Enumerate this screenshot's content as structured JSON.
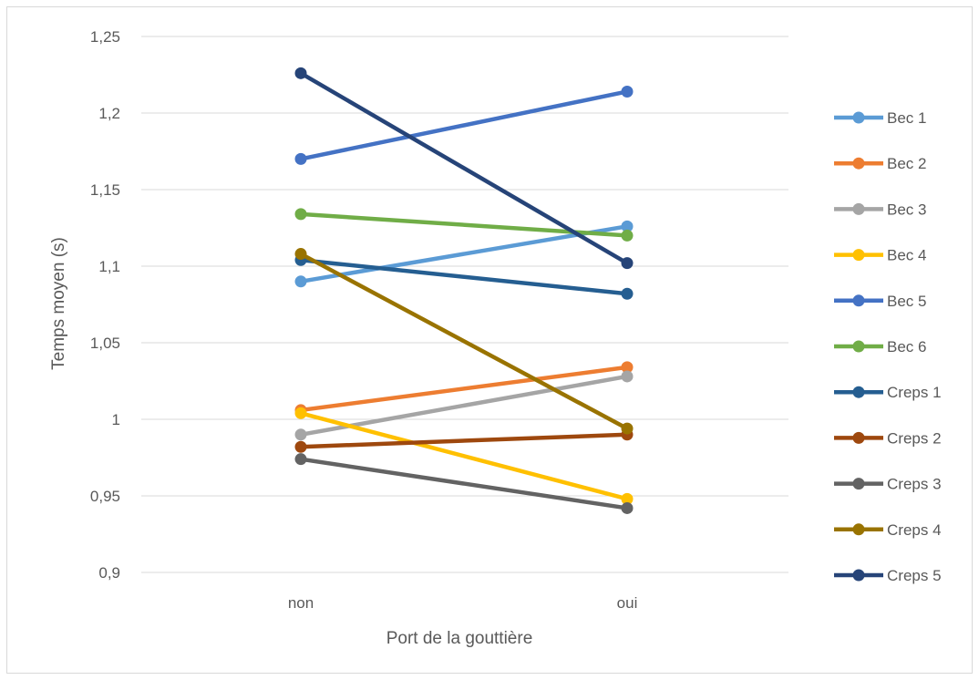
{
  "chart_data": {
    "type": "line",
    "title": "",
    "xlabel": "Port de la gouttière",
    "ylabel": "Temps moyen (s)",
    "categories": [
      "non",
      "oui"
    ],
    "ylim": [
      0.9,
      1.25
    ],
    "yticks": [
      "0,9",
      "0,95",
      "1",
      "1,05",
      "1,1",
      "1,15",
      "1,2",
      "1,25"
    ],
    "ytick_values": [
      0.9,
      0.95,
      1.0,
      1.05,
      1.1,
      1.15,
      1.2,
      1.25
    ],
    "grid": true,
    "legend_position": "right",
    "series": [
      {
        "name": "Bec 1",
        "color": "#5B9BD5",
        "values": [
          1.09,
          1.126
        ]
      },
      {
        "name": "Bec 2",
        "color": "#ED7D31",
        "values": [
          1.006,
          1.034
        ]
      },
      {
        "name": "Bec 3",
        "color": "#A5A5A5",
        "values": [
          0.99,
          1.028
        ]
      },
      {
        "name": "Bec 4",
        "color": "#FFC000",
        "values": [
          1.004,
          0.948
        ]
      },
      {
        "name": "Bec 5",
        "color": "#4472C4",
        "values": [
          1.17,
          1.214
        ]
      },
      {
        "name": "Bec 6",
        "color": "#70AD47",
        "values": [
          1.134,
          1.12
        ]
      },
      {
        "name": "Creps 1",
        "color": "#255E91",
        "values": [
          1.104,
          1.082
        ]
      },
      {
        "name": "Creps 2",
        "color": "#9E480E",
        "values": [
          0.982,
          0.99
        ]
      },
      {
        "name": "Creps 3",
        "color": "#636363",
        "values": [
          0.974,
          0.942
        ]
      },
      {
        "name": "Creps 4",
        "color": "#997300",
        "values": [
          1.108,
          0.994
        ]
      },
      {
        "name": "Creps 5",
        "color": "#264478",
        "values": [
          1.226,
          1.102
        ]
      }
    ]
  }
}
